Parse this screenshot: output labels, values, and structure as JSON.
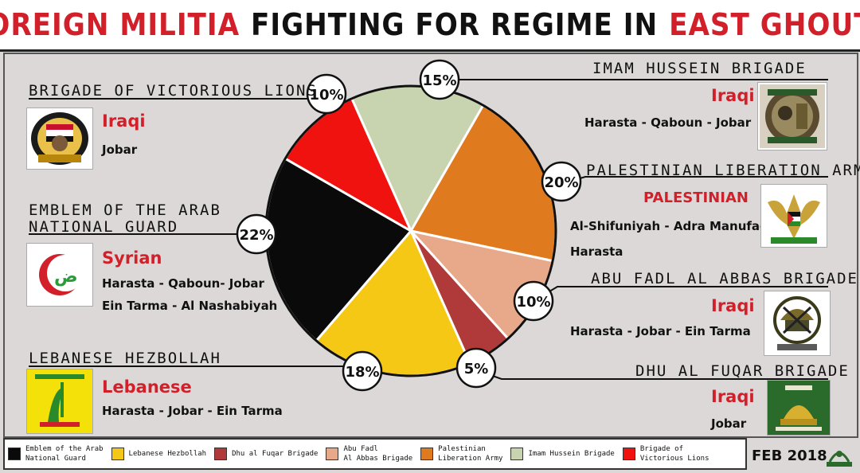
{
  "title": {
    "part1": "FOREIGN MILITIA",
    "part2": "FIGHTING FOR REGIME IN",
    "part3": "EAST GHOUTA"
  },
  "chart_data": {
    "type": "pie",
    "title": "FOREIGN MILITIA FIGHTING FOR REGIME IN EAST GHOUTA",
    "slices": [
      {
        "name": "Imam Hussein Brigade",
        "value": 15,
        "label": "15%",
        "color": "#c8d4b0"
      },
      {
        "name": "Palestinian Liberation Army",
        "value": 20,
        "label": "20%",
        "color": "#e07a1f"
      },
      {
        "name": "Abu Fadl Al Abbas Brigade",
        "value": 10,
        "label": "10%",
        "color": "#e8a98a"
      },
      {
        "name": "Dhu al Fuqar Brigade",
        "value": 5,
        "label": "5%",
        "color": "#b03a3a"
      },
      {
        "name": "Lebanese Hezbollah",
        "value": 18,
        "label": "18%",
        "color": "#f5c815"
      },
      {
        "name": "Emblem of the Arab National Guard",
        "value": 22,
        "label": "22%",
        "color": "#0a0a0a"
      },
      {
        "name": "Brigade of Victorious Lions",
        "value": 10,
        "label": "10%",
        "color": "#f0120f"
      }
    ],
    "legend_position": "bottom"
  },
  "militias": {
    "lions": {
      "name": "BRIGADE OF VICTORIOUS LIONS",
      "nation": "Iraqi",
      "areas": [
        "Jobar"
      ]
    },
    "arab_guard": {
      "name_line1": "EMBLEM OF THE ARAB",
      "name_line2": "NATIONAL GUARD",
      "nation": "Syrian",
      "areas": [
        "Harasta - Qaboun- Jobar",
        "Ein Tarma - Al Nashabiyah"
      ]
    },
    "hezbollah": {
      "name": "LEBANESE HEZBOLLAH",
      "nation": "Lebanese",
      "areas": [
        "Harasta - Jobar - Ein Tarma"
      ]
    },
    "imam": {
      "name": "IMAM HUSSEIN BRIGADE",
      "nation": "Iraqi",
      "areas": [
        "Harasta - Qaboun - Jobar"
      ]
    },
    "pla": {
      "name": "PALESTINIAN LIBERATION ARMY",
      "nation": "PALESTINIAN",
      "areas": [
        "Al-Shifuniyah - Adra Manufacturing",
        "Harasta"
      ]
    },
    "abbas": {
      "name": "ABU FADL AL ABBAS BRIGADE",
      "nation": "Iraqi",
      "areas": [
        "Harasta - Jobar - Ein Tarma"
      ]
    },
    "fuqar": {
      "name": "DHU AL FUQAR BRIGADE",
      "nation": "Iraqi",
      "areas": [
        "Jobar"
      ]
    }
  },
  "legend": [
    {
      "label": "Emblem of the Arab\nNational Guard",
      "color": "#0a0a0a"
    },
    {
      "label": "Lebanese Hezbollah",
      "color": "#f5c815"
    },
    {
      "label": "Dhu al Fuqar Brigade",
      "color": "#b03a3a"
    },
    {
      "label": "Abu Fadl\nAl Abbas Brigade",
      "color": "#e8a98a"
    },
    {
      "label": "Palestinian\nLiberation Army",
      "color": "#e07a1f"
    },
    {
      "label": "Imam Hussein Brigade",
      "color": "#c8d4b0"
    },
    {
      "label": "Brigade of\nVictorious Lions",
      "color": "#f0120f"
    }
  ],
  "date": "FEB 2018",
  "icons": {
    "arab_guard_logo": "crescent-emblem-icon",
    "hezbollah_logo": "hezbollah-flag-icon",
    "pla_logo": "eagle-emblem-icon",
    "brand": "brand-logo-icon"
  }
}
